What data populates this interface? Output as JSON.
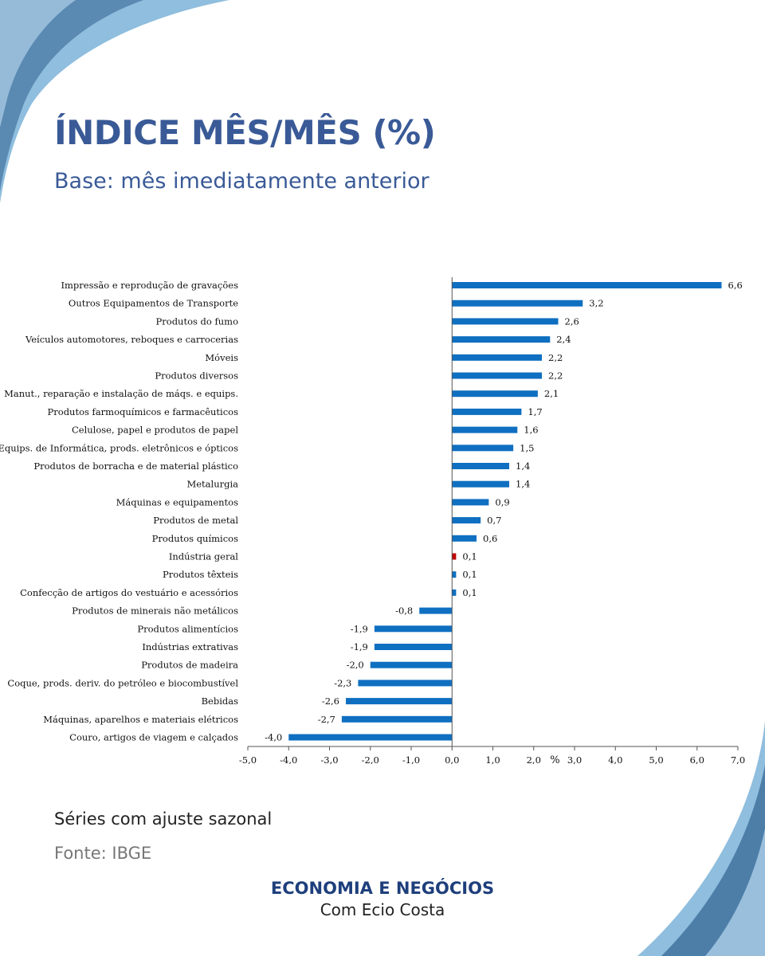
{
  "header": {
    "title": "ÍNDICE MÊS/MÊS (%)",
    "subtitle": "Base: mês imediatamente anterior"
  },
  "footer": {
    "note": "Séries com ajuste sazonal",
    "source": "Fonte: IBGE",
    "brand": "ECONOMIA E NEGÓCIOS",
    "brand_sub": "Com Ecio Costa"
  },
  "colors": {
    "title": "#3a5a97",
    "bar": "#0f6fc1",
    "highlight_bar": "#c00000",
    "decoration_dark": "#4d7ea8",
    "decoration_light": "#8fbede"
  },
  "chart_data": {
    "type": "bar",
    "orientation": "horizontal",
    "xlabel": "%",
    "xlim": [
      -5,
      7
    ],
    "xticks": [
      "-5,0",
      "-4,0",
      "-3,0",
      "-2,0",
      "-1,0",
      "0,0",
      "1,0",
      "2,0",
      "3,0",
      "4,0",
      "5,0",
      "6,0",
      "7,0"
    ],
    "grid": false,
    "categories": [
      "Impressão e reprodução de gravações",
      "Outros Equipamentos de Transporte",
      "Produtos do fumo",
      "Veículos automotores, reboques e carrocerias",
      "Móveis",
      "Produtos diversos",
      "Manut., reparação e instalação de máqs. e equips.",
      "Produtos farmoquímicos e farmacêuticos",
      "Celulose, papel e produtos de papel",
      "Equips. de Informática, prods. eletrônicos e ópticos",
      "Produtos de borracha e de material plástico",
      "Metalurgia",
      "Máquinas e equipamentos",
      "Produtos de metal",
      "Produtos químicos",
      "Indústria geral",
      "Produtos têxteis",
      "Confecção de artigos do vestuário e acessórios",
      "Produtos de minerais não metálicos",
      "Produtos alimentícios",
      "Indústrias extrativas",
      "Produtos de madeira",
      "Coque, prods. deriv. do petróleo e biocombustível",
      "Bebidas",
      "Máquinas, aparelhos e materiais elétricos",
      "Couro, artigos de viagem e calçados"
    ],
    "values": [
      6.6,
      3.2,
      2.6,
      2.4,
      2.2,
      2.2,
      2.1,
      1.7,
      1.6,
      1.5,
      1.4,
      1.4,
      0.9,
      0.7,
      0.6,
      0.1,
      0.1,
      0.1,
      -0.8,
      -1.9,
      -1.9,
      -2.0,
      -2.3,
      -2.6,
      -2.7,
      -4.0
    ],
    "value_labels": [
      "6,6",
      "3,2",
      "2,6",
      "2,4",
      "2,2",
      "2,2",
      "2,1",
      "1,7",
      "1,6",
      "1,5",
      "1,4",
      "1,4",
      "0,9",
      "0,7",
      "0,6",
      "0,1",
      "0,1",
      "0,1",
      "-0,8",
      "-1,9",
      "-1,9",
      "-2,0",
      "-2,3",
      "-2,6",
      "-2,7",
      "-4,0"
    ],
    "highlight_category": "Indústria geral"
  }
}
